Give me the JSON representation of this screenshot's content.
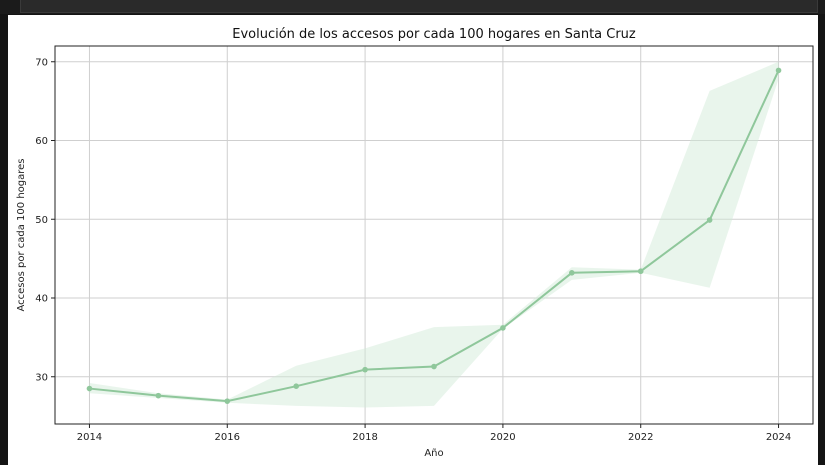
{
  "chart_data": {
    "type": "line",
    "title": "Evolución de los accesos por cada 100 hogares en Santa Cruz",
    "xlabel": "Año",
    "ylabel": "Accesos por cada 100 hogares",
    "xlim": [
      2013.5,
      2024.5
    ],
    "ylim": [
      24,
      72
    ],
    "x_ticks": [
      2014,
      2016,
      2018,
      2020,
      2022,
      2024
    ],
    "y_ticks": [
      30,
      40,
      50,
      60,
      70
    ],
    "grid": true,
    "color": "#8fc79b",
    "band_color": "#cfe8d4",
    "series": [
      {
        "x": [
          2014,
          2015,
          2016,
          2017,
          2018,
          2019,
          2020,
          2021,
          2022,
          2023,
          2024
        ],
        "y": [
          28.5,
          27.6,
          26.9,
          28.8,
          30.9,
          31.3,
          36.2,
          43.2,
          43.4,
          49.9,
          68.9
        ],
        "lower": [
          27.9,
          27.3,
          26.7,
          26.3,
          26.1,
          26.3,
          36.1,
          42.3,
          43.2,
          41.3,
          67.8
        ],
        "upper": [
          29.2,
          27.9,
          27.1,
          31.4,
          33.6,
          36.3,
          36.6,
          43.9,
          43.6,
          66.3,
          70.0
        ]
      }
    ]
  }
}
